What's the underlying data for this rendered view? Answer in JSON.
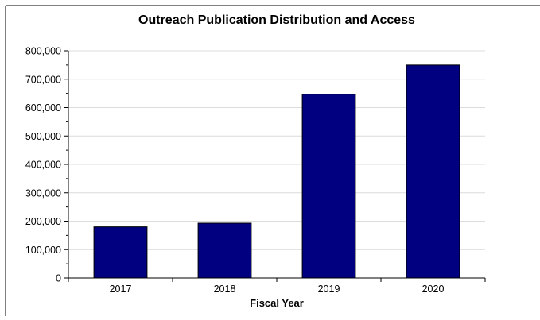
{
  "chart_data": {
    "type": "bar",
    "title": "Outreach Publication Distribution and Access",
    "xlabel": "Fiscal Year",
    "ylabel": "",
    "categories": [
      "2017",
      "2018",
      "2019",
      "2020"
    ],
    "values": [
      180000,
      193000,
      647000,
      750000
    ],
    "ylim": [
      0,
      800000
    ],
    "yticks": [
      0,
      100000,
      200000,
      300000,
      400000,
      500000,
      600000,
      700000,
      800000
    ],
    "ytick_labels": [
      "0",
      "100,000",
      "200,000",
      "300,000",
      "400,000",
      "500,000",
      "600,000",
      "700,000",
      "800,000"
    ],
    "grid": true,
    "legend": "none",
    "bar_color": "#000080",
    "grid_color": "#dcdcdc"
  }
}
